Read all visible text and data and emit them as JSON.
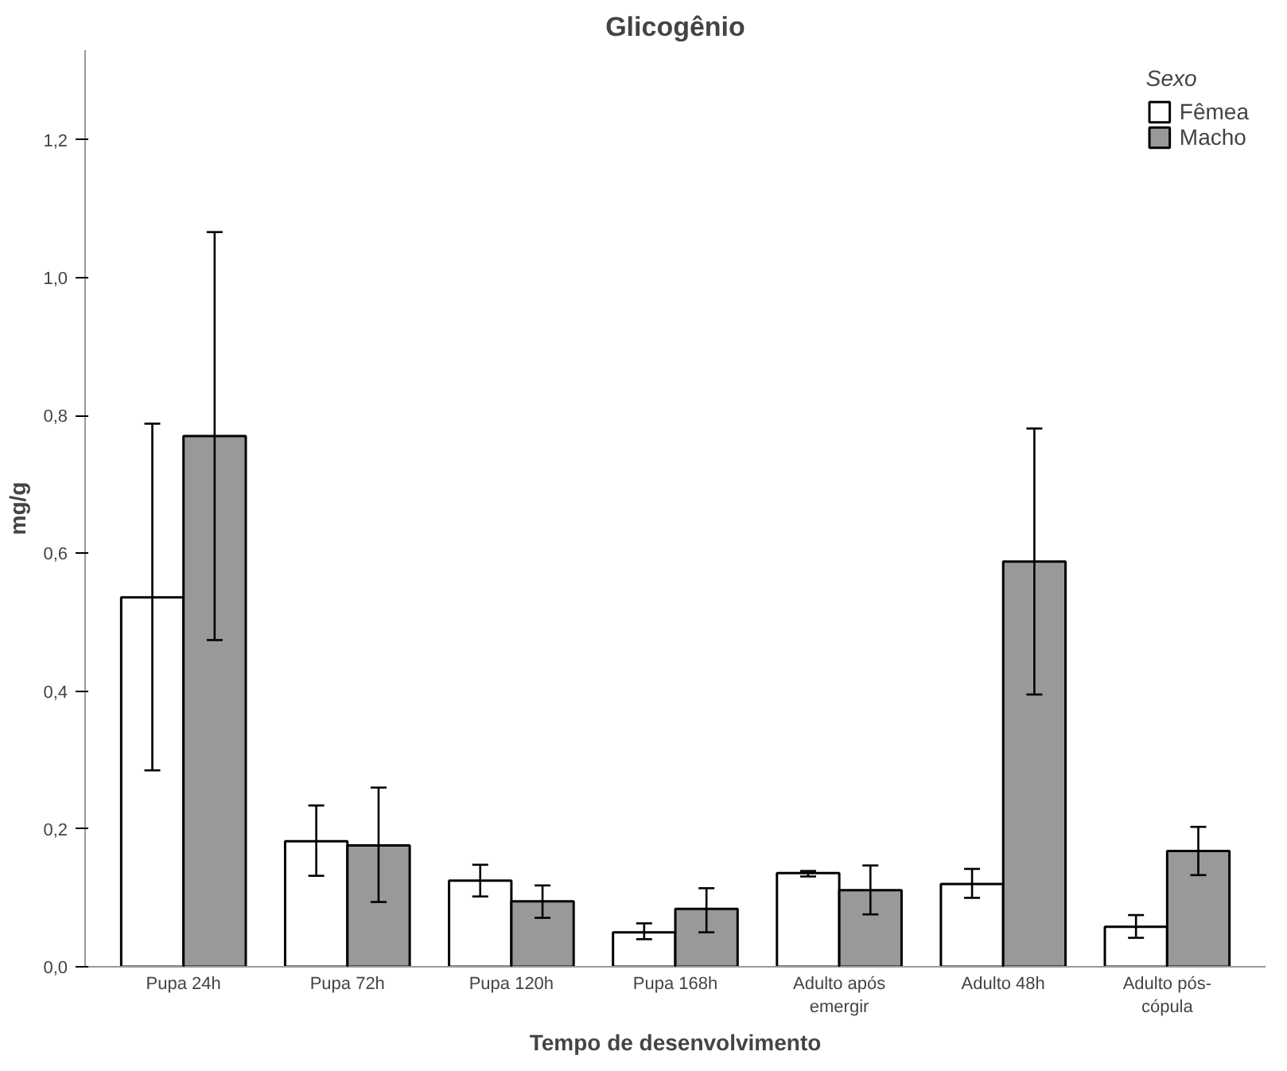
{
  "chart_data": {
    "type": "bar",
    "title": "Glicogênio",
    "xlabel": "Tempo de desenvolvimento",
    "ylabel": "mg/g",
    "legend_title": "Sexo",
    "legend": "top right",
    "grid": false,
    "categories": [
      "Pupa 24h",
      "Pupa 72h",
      "Pupa 120h",
      "Pupa 168h",
      "Adulto após emergir",
      "Adulto 48h",
      "Adulto pós-cópula"
    ],
    "ylim": [
      0,
      1.33
    ],
    "yticks": [
      {
        "value": 0,
        "label": "0,0"
      },
      {
        "value": 0.2,
        "label": "0,2"
      },
      {
        "value": 0.4,
        "label": "0,4"
      },
      {
        "value": 0.6,
        "label": "0,6"
      },
      {
        "value": 0.8,
        "label": "0,8"
      },
      {
        "value": 1.0,
        "label": "1,0"
      },
      {
        "value": 1.2,
        "label": "1,2"
      }
    ],
    "series": [
      {
        "name": "Fêmea",
        "color": "#ffffff",
        "values": [
          0.536,
          0.182,
          0.125,
          0.05,
          0.136,
          0.12,
          0.058
        ],
        "errors": [
          [
            0.285,
            0.788
          ],
          [
            0.132,
            0.234
          ],
          [
            0.102,
            0.148
          ],
          [
            0.04,
            0.063
          ],
          [
            0.131,
            0.139
          ],
          [
            0.1,
            0.142
          ],
          [
            0.042,
            0.075
          ]
        ]
      },
      {
        "name": "Macho",
        "color": "#999999",
        "values": [
          0.77,
          0.176,
          0.095,
          0.084,
          0.111,
          0.588,
          0.168
        ],
        "errors": [
          [
            0.474,
            1.066
          ],
          [
            0.094,
            0.26
          ],
          [
            0.071,
            0.118
          ],
          [
            0.05,
            0.114
          ],
          [
            0.076,
            0.147
          ],
          [
            0.395,
            0.781
          ],
          [
            0.133,
            0.203
          ]
        ]
      }
    ]
  }
}
